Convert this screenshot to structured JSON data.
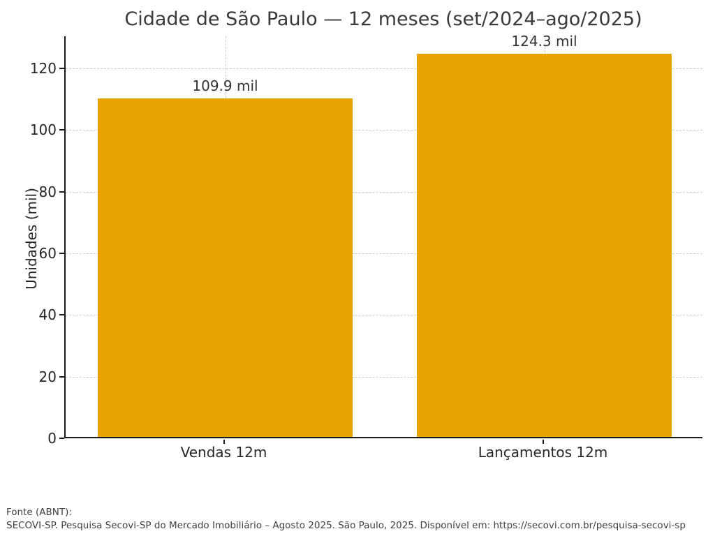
{
  "chart_data": {
    "type": "bar",
    "title": "Cidade de São Paulo — 12 meses (set/2024–ago/2025)",
    "xlabel": "",
    "ylabel": "Unidades (mil)",
    "categories": [
      "Vendas 12m",
      "Lançamentos 12m"
    ],
    "values": [
      109.9,
      124.3
    ],
    "bar_labels": [
      "109.9 mil",
      "124.3 mil"
    ],
    "yticks": [
      0,
      20,
      40,
      60,
      80,
      100,
      120
    ],
    "ylim": [
      0,
      130.4
    ],
    "bar_color": "#E8A302",
    "grid": "both-axes, dashed, light-gray",
    "gridline_color": "#cccccc",
    "legend": "none"
  },
  "footer": {
    "line1": "Fonte (ABNT):",
    "line2": "SECOVI-SP. Pesquisa Secovi-SP do Mercado Imobiliário – Agosto 2025. São Paulo, 2025. Disponível em: https://secovi.com.br/pesquisa-secovi-sp"
  }
}
